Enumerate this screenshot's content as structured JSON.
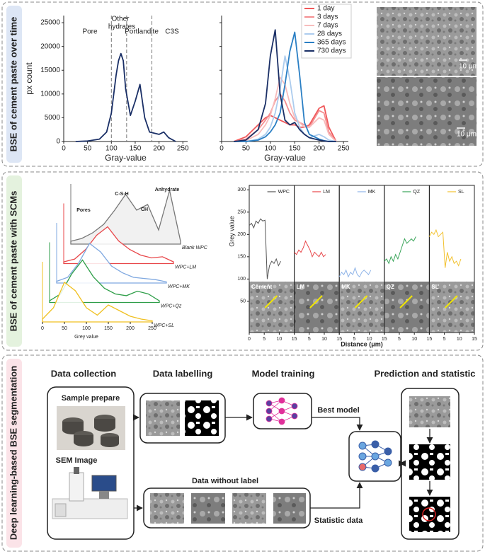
{
  "panels": [
    "BSE of cement paste over time",
    "BSE of cement paste with SCMs",
    "Deep learning-based BSE segmentation"
  ],
  "chart_data": [
    {
      "type": "line",
      "x_label": "Gray-value",
      "y_label": "px count",
      "xlim": [
        0,
        260
      ],
      "ylim": [
        0,
        26500
      ],
      "xticks": [
        0,
        50,
        100,
        150,
        200,
        250
      ],
      "yticks": [
        0,
        5000,
        10000,
        15000,
        20000,
        25000
      ],
      "annotations": [
        "Pore",
        "Other",
        "hydrates",
        "Portlandite",
        "C3S"
      ],
      "boundaries": [
        100,
        132,
        185
      ],
      "x": [
        25,
        50,
        75,
        90,
        100,
        110,
        115,
        120,
        125,
        130,
        140,
        150,
        160,
        170,
        180,
        200,
        210,
        220,
        235
      ],
      "series": [
        {
          "color": "#1a2f66",
          "values": [
            0,
            100,
            500,
            2000,
            6000,
            14000,
            17000,
            18500,
            17000,
            11000,
            5500,
            8500,
            12000,
            5000,
            2000,
            1500,
            2000,
            800,
            0
          ]
        }
      ]
    },
    {
      "type": "line",
      "x_label": "Gray-value",
      "ytick_labels": false,
      "legend": "upper right",
      "xlim": [
        0,
        260
      ],
      "ylim": [
        0,
        26500
      ],
      "xticks": [
        0,
        50,
        100,
        150,
        200,
        250
      ],
      "yticks": [
        0,
        5000,
        10000,
        15000,
        20000,
        25000
      ],
      "x": [
        25,
        50,
        75,
        90,
        100,
        110,
        120,
        130,
        140,
        150,
        160,
        170,
        180,
        200,
        210,
        220,
        235
      ],
      "series": [
        {
          "name": "1 day",
          "color": "#f0585a",
          "values": [
            0,
            1000,
            3500,
            5000,
            5500,
            5000,
            4500,
            4000,
            3500,
            3500,
            3000,
            3000,
            3500,
            7000,
            7500,
            3000,
            0
          ]
        },
        {
          "name": "3 days",
          "color": "#f48e90",
          "values": [
            0,
            500,
            2500,
            4500,
            6000,
            8500,
            10000,
            8500,
            6000,
            4500,
            4000,
            3500,
            3000,
            6500,
            6000,
            2000,
            0
          ]
        },
        {
          "name": "7 days",
          "color": "#f7bcbc",
          "values": [
            0,
            200,
            1500,
            3500,
            5500,
            9000,
            13500,
            12000,
            8000,
            5000,
            4000,
            3000,
            3000,
            5000,
            4500,
            1500,
            0
          ]
        },
        {
          "name": "28 days",
          "color": "#acccee",
          "values": [
            0,
            0,
            500,
            1500,
            3000,
            6000,
            11000,
            18000,
            13000,
            6000,
            3000,
            1500,
            800,
            1500,
            1000,
            300,
            0
          ]
        },
        {
          "name": "365 days",
          "color": "#2a7fc4",
          "values": [
            0,
            0,
            300,
            1000,
            2000,
            3500,
            6000,
            12000,
            19000,
            23000,
            14000,
            4000,
            1500,
            500,
            200,
            0,
            0
          ]
        },
        {
          "name": "730 days",
          "color": "#1a2f66",
          "values": [
            0,
            300,
            2500,
            8000,
            18000,
            23500,
            10000,
            4500,
            3500,
            4000,
            2500,
            1500,
            800,
            300,
            100,
            0,
            0
          ]
        }
      ]
    },
    {
      "type": "waterfall",
      "x_label": "Grey value",
      "xlim": [
        0,
        250
      ],
      "xticks": [
        0,
        50,
        100,
        150,
        200,
        250
      ],
      "annotations": [
        "Pores",
        "C-S-H",
        "CH",
        "Anhydrate"
      ],
      "x": [
        0,
        25,
        50,
        75,
        100,
        125,
        150,
        175,
        200,
        225,
        250
      ],
      "series": [
        {
          "name": "Blank WPC",
          "color": "#777777",
          "values": [
            5,
            10,
            20,
            35,
            60,
            88,
            60,
            70,
            25,
            95,
            5
          ]
        },
        {
          "name": "WPC+LM",
          "color": "#e8474a",
          "values": [
            3,
            8,
            25,
            50,
            65,
            40,
            25,
            15,
            10,
            12,
            3
          ]
        },
        {
          "name": "WPC+MK",
          "color": "#7fa8e0",
          "values": [
            3,
            10,
            35,
            70,
            55,
            30,
            18,
            10,
            8,
            6,
            2
          ]
        },
        {
          "name": "WPC+Qz",
          "color": "#2e9e48",
          "values": [
            3,
            15,
            50,
            75,
            45,
            25,
            15,
            12,
            20,
            15,
            3
          ]
        },
        {
          "name": "WPC+SL",
          "color": "#f0c020",
          "values": [
            5,
            25,
            70,
            55,
            25,
            12,
            30,
            20,
            10,
            5,
            2
          ]
        }
      ]
    },
    {
      "type": "line_panels",
      "x_label": "Distance (μm)",
      "y_label": "Grey value",
      "xlim": [
        0,
        15
      ],
      "ylim": [
        -20,
        310
      ],
      "xticks": [
        0,
        5,
        10,
        15
      ],
      "yticks": [
        50,
        100,
        150,
        200,
        250,
        300
      ],
      "x": [
        0,
        0.75,
        1.5,
        2.25,
        3,
        3.75,
        4.5,
        5.25,
        6,
        6.75,
        7.5,
        8.25,
        9,
        9.75,
        10.5
      ],
      "image_labels": [
        "Cement",
        "LM",
        "MK",
        "QZ",
        "SL"
      ],
      "series": [
        {
          "name": "WPC",
          "color": "#555555",
          "values": [
            220,
            225,
            215,
            230,
            225,
            235,
            230,
            232,
            100,
            130,
            140,
            135,
            145,
            130,
            140
          ]
        },
        {
          "name": "LM",
          "color": "#e8474a",
          "values": [
            160,
            155,
            165,
            160,
            170,
            185,
            175,
            165,
            150,
            160,
            155,
            150,
            160,
            150,
            155
          ]
        },
        {
          "name": "MK",
          "color": "#8fb4e8",
          "values": [
            105,
            115,
            110,
            120,
            105,
            115,
            110,
            125,
            110,
            105,
            115,
            120,
            115,
            110,
            120
          ]
        },
        {
          "name": "QZ",
          "color": "#3aa55a",
          "values": [
            140,
            145,
            135,
            150,
            140,
            155,
            145,
            160,
            175,
            190,
            180,
            185,
            190,
            185,
            195
          ]
        },
        {
          "name": "SL",
          "color": "#f2c12e",
          "values": [
            195,
            205,
            200,
            210,
            195,
            200,
            205,
            125,
            160,
            140,
            150,
            135,
            140,
            130,
            145
          ]
        }
      ]
    }
  ],
  "scale_bars": [
    "10 μm",
    "10 μm"
  ],
  "workflow": {
    "steps": [
      "Data collection",
      "Data labelling",
      "Model training",
      "Prediction and statistic"
    ],
    "sample": "Sample prepare",
    "sem": "SEM Image",
    "best": "Best model",
    "unlabeled": "Data without label",
    "statistic": "Statistic data"
  }
}
